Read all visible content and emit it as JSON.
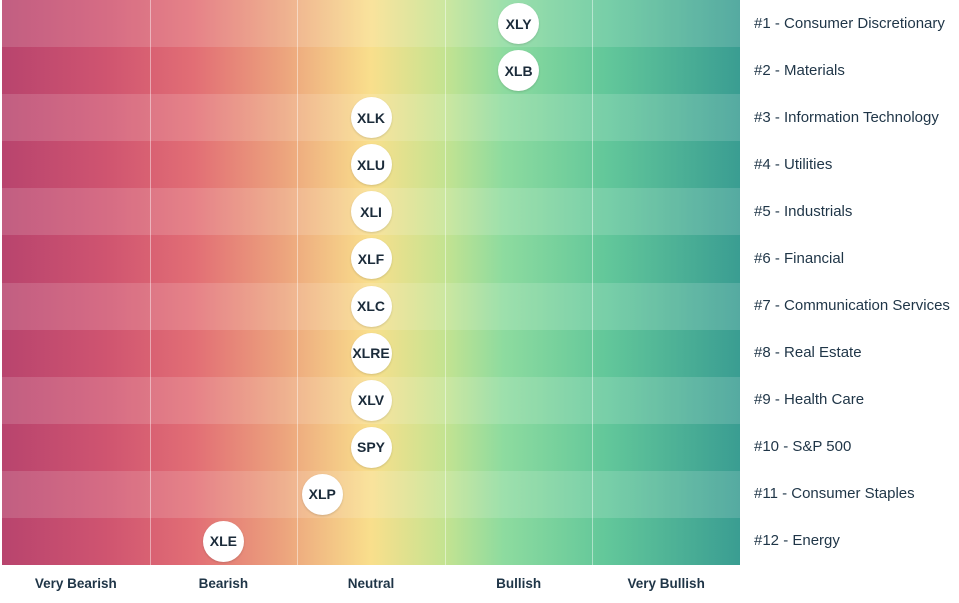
{
  "chart_data": {
    "type": "scatter",
    "x_categories": [
      "Very Bearish",
      "Bearish",
      "Neutral",
      "Bullish",
      "Very Bullish"
    ],
    "rows": [
      {
        "label": "#1 - Consumer Discretionary",
        "ticker": "XLY",
        "x": 3.0
      },
      {
        "label": "#2 - Materials",
        "ticker": "XLB",
        "x": 3.0
      },
      {
        "label": "#3 - Information Technology",
        "ticker": "XLK",
        "x": 2.0
      },
      {
        "label": "#4 - Utilities",
        "ticker": "XLU",
        "x": 2.0
      },
      {
        "label": "#5 - Industrials",
        "ticker": "XLI",
        "x": 2.0
      },
      {
        "label": "#6 - Financial",
        "ticker": "XLF",
        "x": 2.0
      },
      {
        "label": "#7 - Communication Services",
        "ticker": "XLC",
        "x": 2.0
      },
      {
        "label": "#8 - Real Estate",
        "ticker": "XLRE",
        "x": 2.0
      },
      {
        "label": "#9 - Health Care",
        "ticker": "XLV",
        "x": 2.0
      },
      {
        "label": "#10 - S&P 500",
        "ticker": "SPY",
        "x": 2.0
      },
      {
        "label": "#11 - Consumer Staples",
        "ticker": "XLP",
        "x": 1.67
      },
      {
        "label": "#12 - Energy",
        "ticker": "XLE",
        "x": 1.0
      }
    ],
    "colors": {
      "very_bearish": "#b8446e",
      "neutral": "#f9df8c",
      "very_bullish": "#3a9d92",
      "bubble_fill": "#ffffff",
      "text": "#1f3547"
    },
    "grid": true,
    "legend": "none"
  }
}
